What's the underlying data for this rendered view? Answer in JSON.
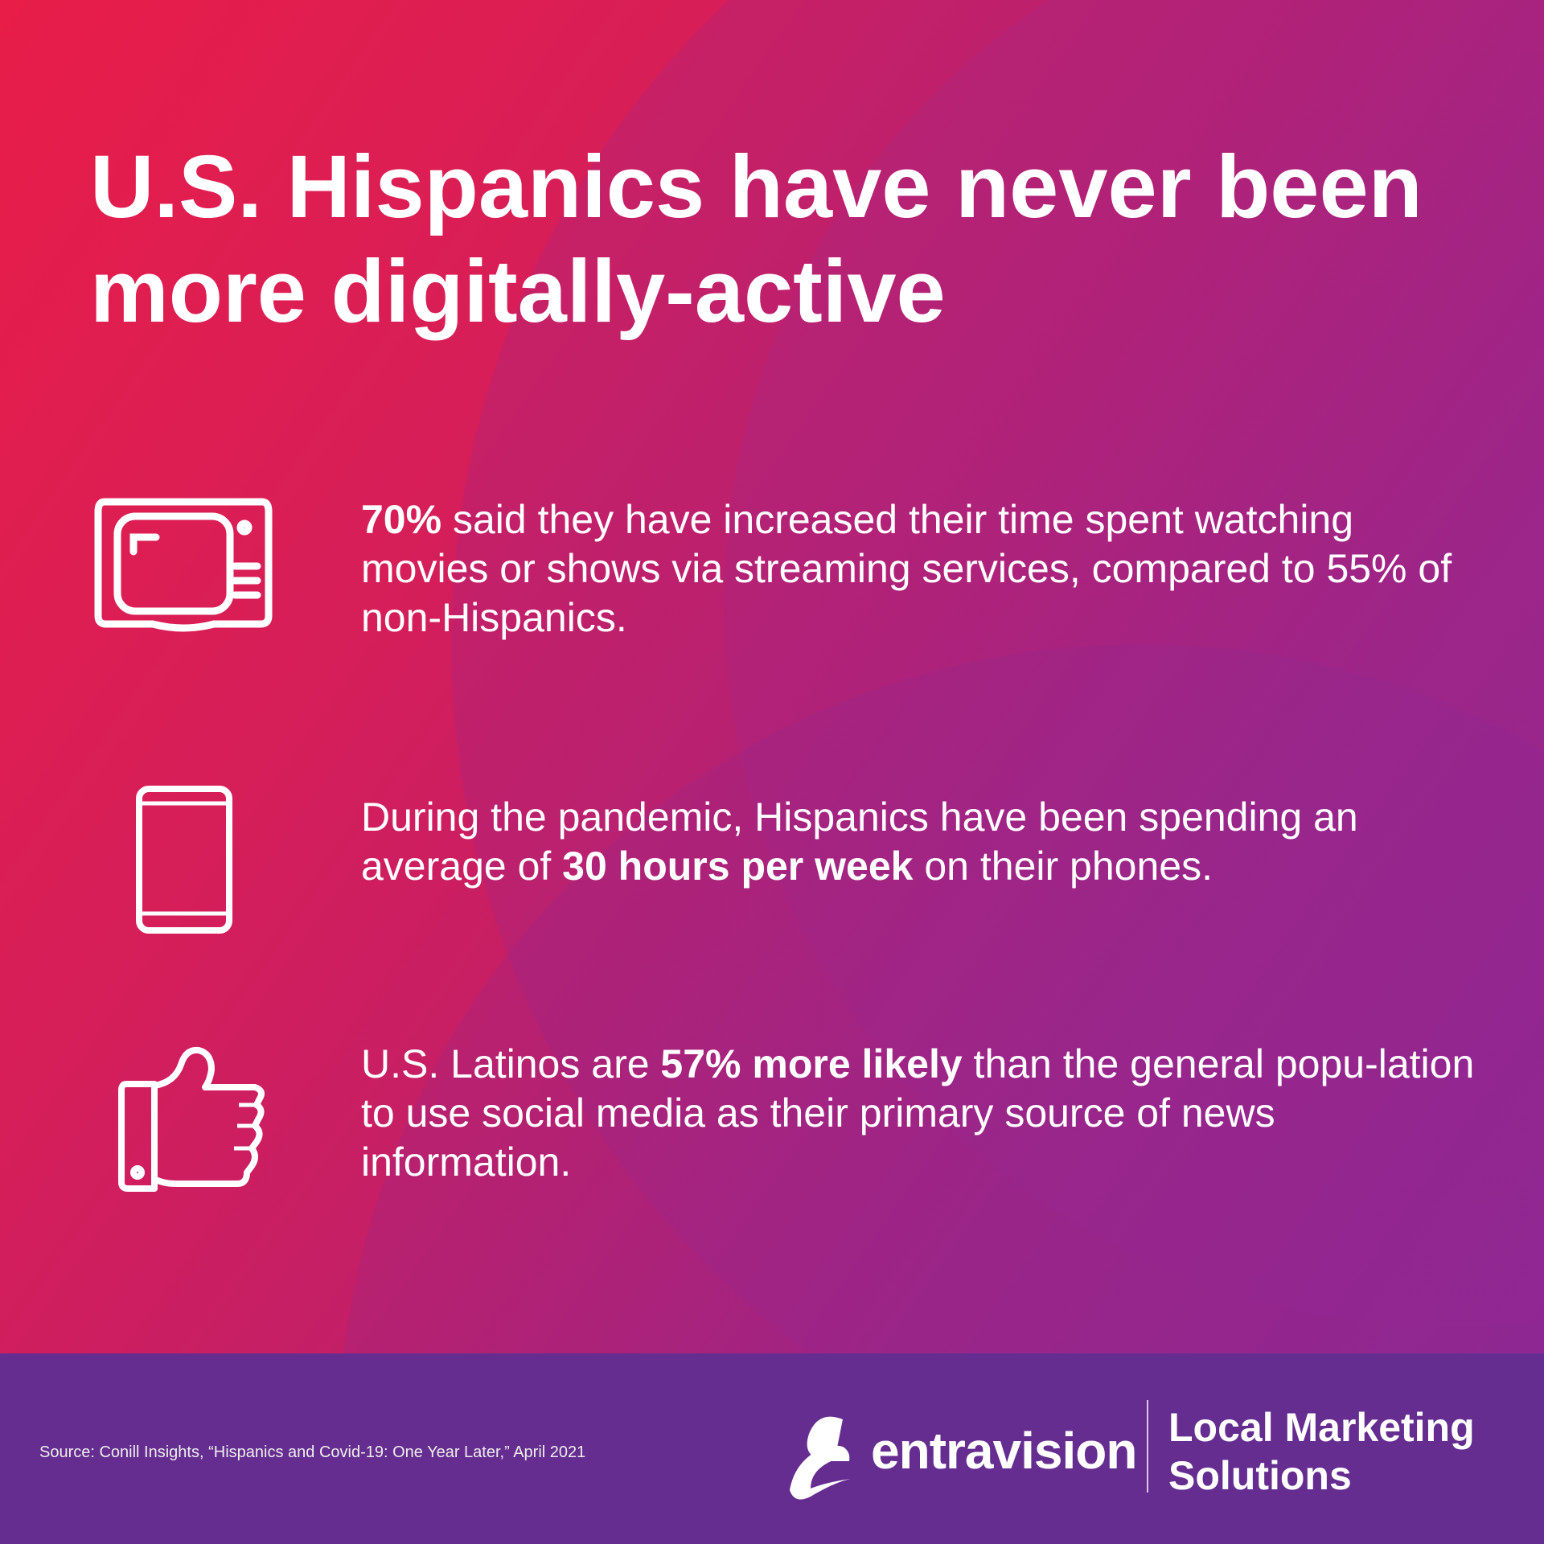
{
  "title": "U.S. Hispanics have never been more digitally-active",
  "stats": [
    {
      "icon": "tv-icon",
      "bold": "70%",
      "text": " said they have increased their time spent watching movies or shows via streaming services, compared to 55% of non-Hispanics."
    },
    {
      "icon": "smartphone-icon",
      "pre": "During the pandemic, Hispanics have been spending an average of ",
      "bold": "30 hours per week",
      "post": " on their phones."
    },
    {
      "icon": "thumbs-up-icon",
      "pre": "U.S. Latinos are ",
      "bold": "57% more likely",
      "post": " than the general popu-lation to use social media as their primary source of news information."
    }
  ],
  "footer": {
    "source": "Source: Conill Insights, “Hispanics and Covid-19: One Year Later,” April 2021",
    "brand": "entravision",
    "tagline_line1": "Local Marketing",
    "tagline_line2": "Solutions"
  },
  "colors": {
    "gradient_start": "#e81d48",
    "gradient_end": "#8e2893",
    "footer": "#652d90"
  }
}
